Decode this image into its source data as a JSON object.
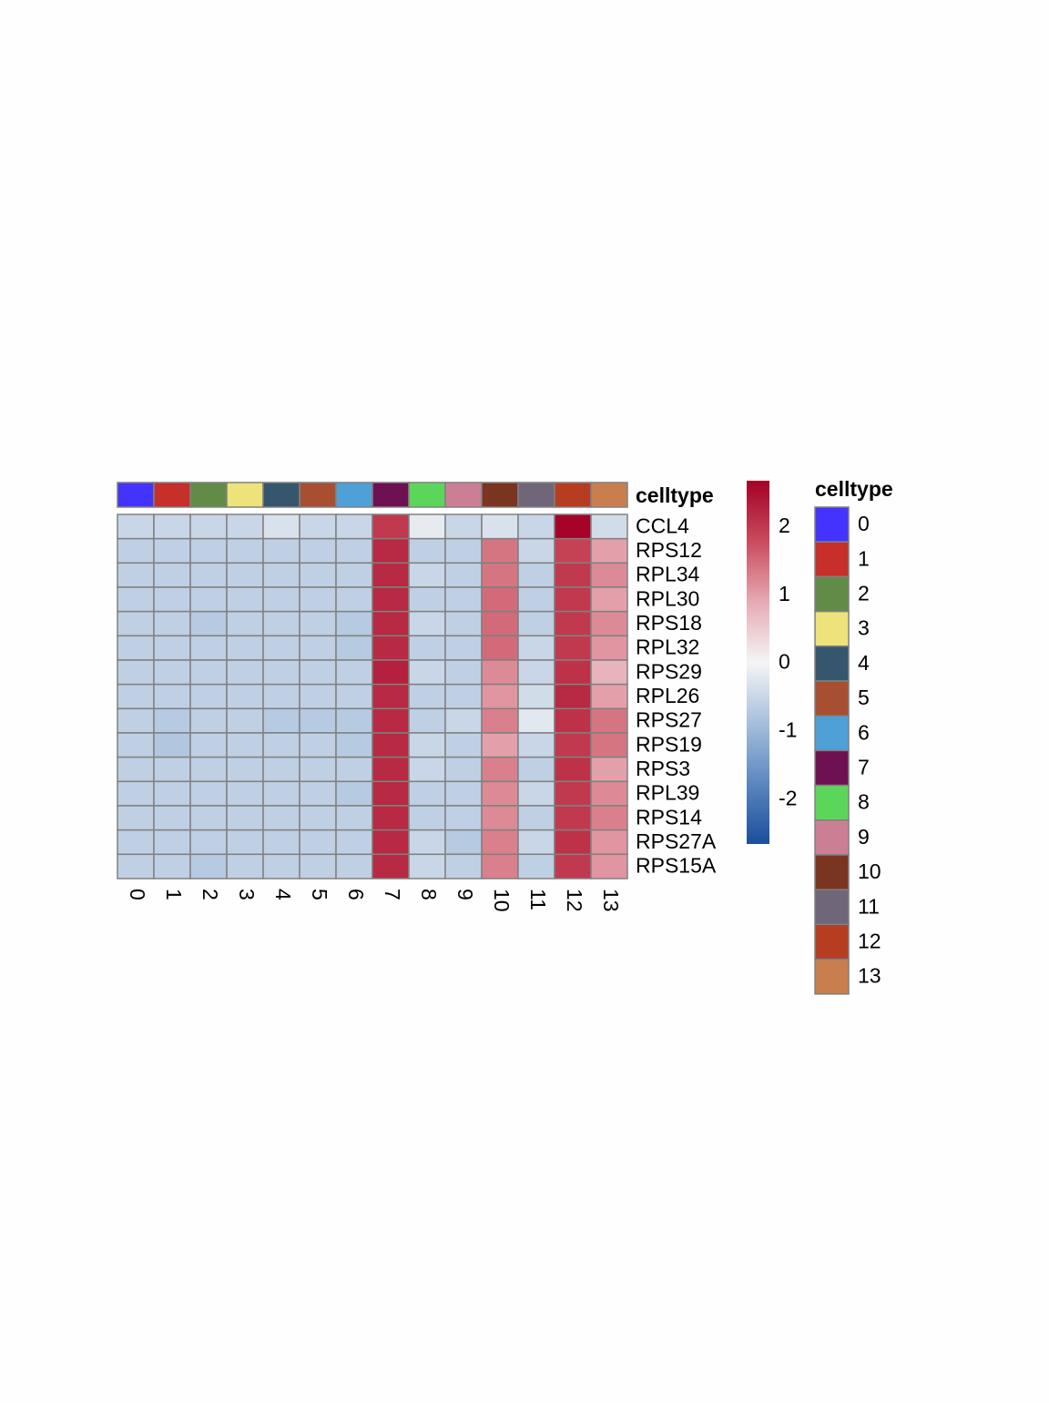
{
  "chart_data": {
    "type": "heatmap",
    "rows": [
      "CCL4",
      "RPS12",
      "RPL34",
      "RPL30",
      "RPS18",
      "RPL32",
      "RPS29",
      "RPL26",
      "RPS27",
      "RPS19",
      "RPS3",
      "RPL39",
      "RPS14",
      "RPS27A",
      "RPS15A"
    ],
    "columns": [
      "0",
      "1",
      "2",
      "3",
      "4",
      "5",
      "6",
      "7",
      "8",
      "9",
      "10",
      "11",
      "12",
      "13"
    ],
    "values": [
      [
        -0.5,
        -0.5,
        -0.5,
        -0.5,
        -0.3,
        -0.5,
        -0.5,
        2.0,
        -0.15,
        -0.5,
        -0.3,
        -0.5,
        2.65,
        -0.4
      ],
      [
        -0.6,
        -0.6,
        -0.6,
        -0.6,
        -0.6,
        -0.6,
        -0.6,
        2.2,
        -0.6,
        -0.6,
        1.4,
        -0.5,
        1.9,
        1.0
      ],
      [
        -0.6,
        -0.6,
        -0.6,
        -0.6,
        -0.6,
        -0.6,
        -0.6,
        2.2,
        -0.5,
        -0.6,
        1.4,
        -0.6,
        2.0,
        1.2
      ],
      [
        -0.6,
        -0.6,
        -0.6,
        -0.6,
        -0.6,
        -0.6,
        -0.6,
        2.2,
        -0.6,
        -0.6,
        1.5,
        -0.6,
        2.0,
        1.0
      ],
      [
        -0.6,
        -0.6,
        -0.7,
        -0.6,
        -0.6,
        -0.6,
        -0.7,
        2.2,
        -0.5,
        -0.6,
        1.5,
        -0.6,
        2.0,
        1.2
      ],
      [
        -0.6,
        -0.6,
        -0.6,
        -0.6,
        -0.6,
        -0.6,
        -0.7,
        2.2,
        -0.6,
        -0.6,
        1.5,
        -0.5,
        2.0,
        1.1
      ],
      [
        -0.6,
        -0.6,
        -0.6,
        -0.6,
        -0.6,
        -0.6,
        -0.6,
        2.3,
        -0.5,
        -0.6,
        1.2,
        -0.5,
        2.1,
        0.8
      ],
      [
        -0.6,
        -0.6,
        -0.6,
        -0.6,
        -0.6,
        -0.6,
        -0.6,
        2.2,
        -0.6,
        -0.6,
        1.1,
        -0.4,
        2.2,
        1.0
      ],
      [
        -0.6,
        -0.7,
        -0.6,
        -0.6,
        -0.7,
        -0.7,
        -0.7,
        2.2,
        -0.6,
        -0.5,
        1.3,
        -0.2,
        2.1,
        1.4
      ],
      [
        -0.6,
        -0.75,
        -0.6,
        -0.6,
        -0.6,
        -0.6,
        -0.7,
        2.2,
        -0.5,
        -0.6,
        1.0,
        -0.5,
        2.0,
        1.4
      ],
      [
        -0.6,
        -0.6,
        -0.6,
        -0.6,
        -0.6,
        -0.6,
        -0.6,
        2.2,
        -0.5,
        -0.6,
        1.3,
        -0.6,
        2.1,
        1.0
      ],
      [
        -0.6,
        -0.6,
        -0.6,
        -0.6,
        -0.6,
        -0.6,
        -0.7,
        2.2,
        -0.6,
        -0.6,
        1.2,
        -0.5,
        2.0,
        1.2
      ],
      [
        -0.6,
        -0.6,
        -0.6,
        -0.6,
        -0.6,
        -0.6,
        -0.6,
        2.2,
        -0.6,
        -0.6,
        1.2,
        -0.6,
        2.0,
        1.3
      ],
      [
        -0.6,
        -0.6,
        -0.6,
        -0.6,
        -0.6,
        -0.6,
        -0.6,
        2.2,
        -0.5,
        -0.7,
        1.3,
        -0.5,
        2.1,
        1.1
      ],
      [
        -0.6,
        -0.6,
        -0.7,
        -0.6,
        -0.6,
        -0.6,
        -0.6,
        2.2,
        -0.5,
        -0.6,
        1.3,
        -0.6,
        2.0,
        1.1
      ]
    ],
    "clim": [
      -2.65,
      2.68
    ],
    "colorbar_ticks": [
      -2,
      -1,
      0,
      1,
      2
    ],
    "colorscale": [
      "#1b4f9c",
      "#5b87c0",
      "#a7bfdc",
      "#f5f5f5",
      "#e6aab3",
      "#c94b5c",
      "#a50026"
    ],
    "annotation": {
      "name": "celltype",
      "colors": [
        "#4433ff",
        "#c62f2a",
        "#628b48",
        "#ede37a",
        "#36566e",
        "#a84f31",
        "#4ea0d6",
        "#6e1152",
        "#5cd65a",
        "#cc7f94",
        "#7a3520",
        "#706679",
        "#b73d21",
        "#c97e4e"
      ]
    }
  }
}
